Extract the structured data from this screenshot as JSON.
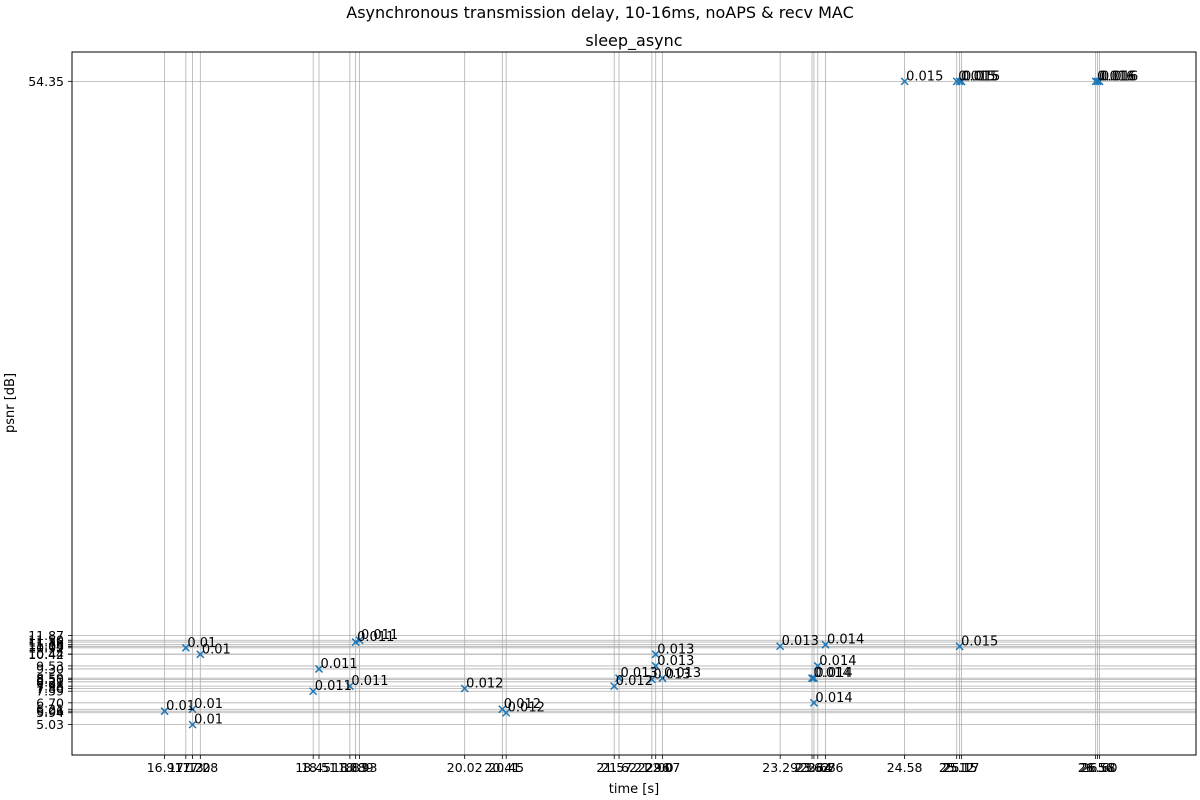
{
  "figure": {
    "title": "Asynchronous transmission delay, 10-16ms, noAPS & recv MAC"
  },
  "chart_data": {
    "type": "scatter",
    "title": "sleep_async",
    "xlabel": "time [s]",
    "ylabel": "psnr [dB]",
    "xlim": [
      15.95,
      27.6
    ],
    "ylim": [
      2.7,
      56.6
    ],
    "grid": true,
    "marker": "x",
    "marker_color": "#1f77b4",
    "x_ticks": [
      "16.91",
      "17.13",
      "17.20",
      "17.28",
      "18.45",
      "18.51",
      "18.83",
      "18.89",
      "18.93",
      "20.02",
      "20.41",
      "20.45",
      "21.57",
      "21.62",
      "21.96",
      "22.00",
      "22.07",
      "23.29",
      "23.62",
      "23.64",
      "23.68",
      "23.76",
      "24.58",
      "25.12",
      "25.15",
      "25.17",
      "26.56",
      "26.58",
      "26.60"
    ],
    "y_ticks": [
      "5.03",
      "5.94",
      "6.06",
      "6.21",
      "6.70",
      "7.59",
      "7.80",
      "7.98",
      "8.31",
      "8.50",
      "8.59",
      "9.30",
      "9.53",
      "10.42",
      "10.44",
      "10.92",
      "11.03",
      "11.04",
      "11.16",
      "11.36",
      "11.50",
      "11.87",
      "54.35"
    ],
    "points": [
      {
        "x": 16.91,
        "y": 6.06,
        "label": "0.01"
      },
      {
        "x": 17.13,
        "y": 10.92,
        "label": "0.01"
      },
      {
        "x": 17.2,
        "y": 5.03,
        "label": "0.01"
      },
      {
        "x": 17.2,
        "y": 6.21,
        "label": "0.01"
      },
      {
        "x": 17.28,
        "y": 10.42,
        "label": "0.01"
      },
      {
        "x": 18.45,
        "y": 7.59,
        "label": "0.011"
      },
      {
        "x": 18.51,
        "y": 9.3,
        "label": "0.011"
      },
      {
        "x": 18.83,
        "y": 7.98,
        "label": "0.011"
      },
      {
        "x": 18.89,
        "y": 11.36,
        "label": "0.011"
      },
      {
        "x": 18.93,
        "y": 11.5,
        "label": "0.011"
      },
      {
        "x": 20.02,
        "y": 7.8,
        "label": "0.012"
      },
      {
        "x": 20.41,
        "y": 6.21,
        "label": "0.012"
      },
      {
        "x": 20.45,
        "y": 5.94,
        "label": "0.012"
      },
      {
        "x": 21.57,
        "y": 7.98,
        "label": "0.012"
      },
      {
        "x": 21.62,
        "y": 8.59,
        "label": "0.013"
      },
      {
        "x": 21.96,
        "y": 8.5,
        "label": "0.013"
      },
      {
        "x": 22.0,
        "y": 10.42,
        "label": "0.013"
      },
      {
        "x": 22.0,
        "y": 9.53,
        "label": "0.013"
      },
      {
        "x": 22.07,
        "y": 8.59,
        "label": "0.013"
      },
      {
        "x": 23.29,
        "y": 11.04,
        "label": "0.013"
      },
      {
        "x": 23.62,
        "y": 8.59,
        "label": "0.014"
      },
      {
        "x": 23.64,
        "y": 8.59,
        "label": "0.014"
      },
      {
        "x": 23.64,
        "y": 6.7,
        "label": "0.014"
      },
      {
        "x": 23.68,
        "y": 9.53,
        "label": "0.014"
      },
      {
        "x": 23.76,
        "y": 11.16,
        "label": "0.014"
      },
      {
        "x": 24.58,
        "y": 54.35,
        "label": "0.015"
      },
      {
        "x": 25.12,
        "y": 54.35,
        "label": "0.015"
      },
      {
        "x": 25.15,
        "y": 54.35,
        "label": "0.015"
      },
      {
        "x": 25.15,
        "y": 11.03,
        "label": "0.015"
      },
      {
        "x": 25.17,
        "y": 54.35,
        "label": "0.015"
      },
      {
        "x": 26.56,
        "y": 54.35,
        "label": "0.016"
      },
      {
        "x": 26.58,
        "y": 54.35,
        "label": "0.016"
      },
      {
        "x": 26.6,
        "y": 54.35,
        "label": "0.016"
      }
    ]
  }
}
